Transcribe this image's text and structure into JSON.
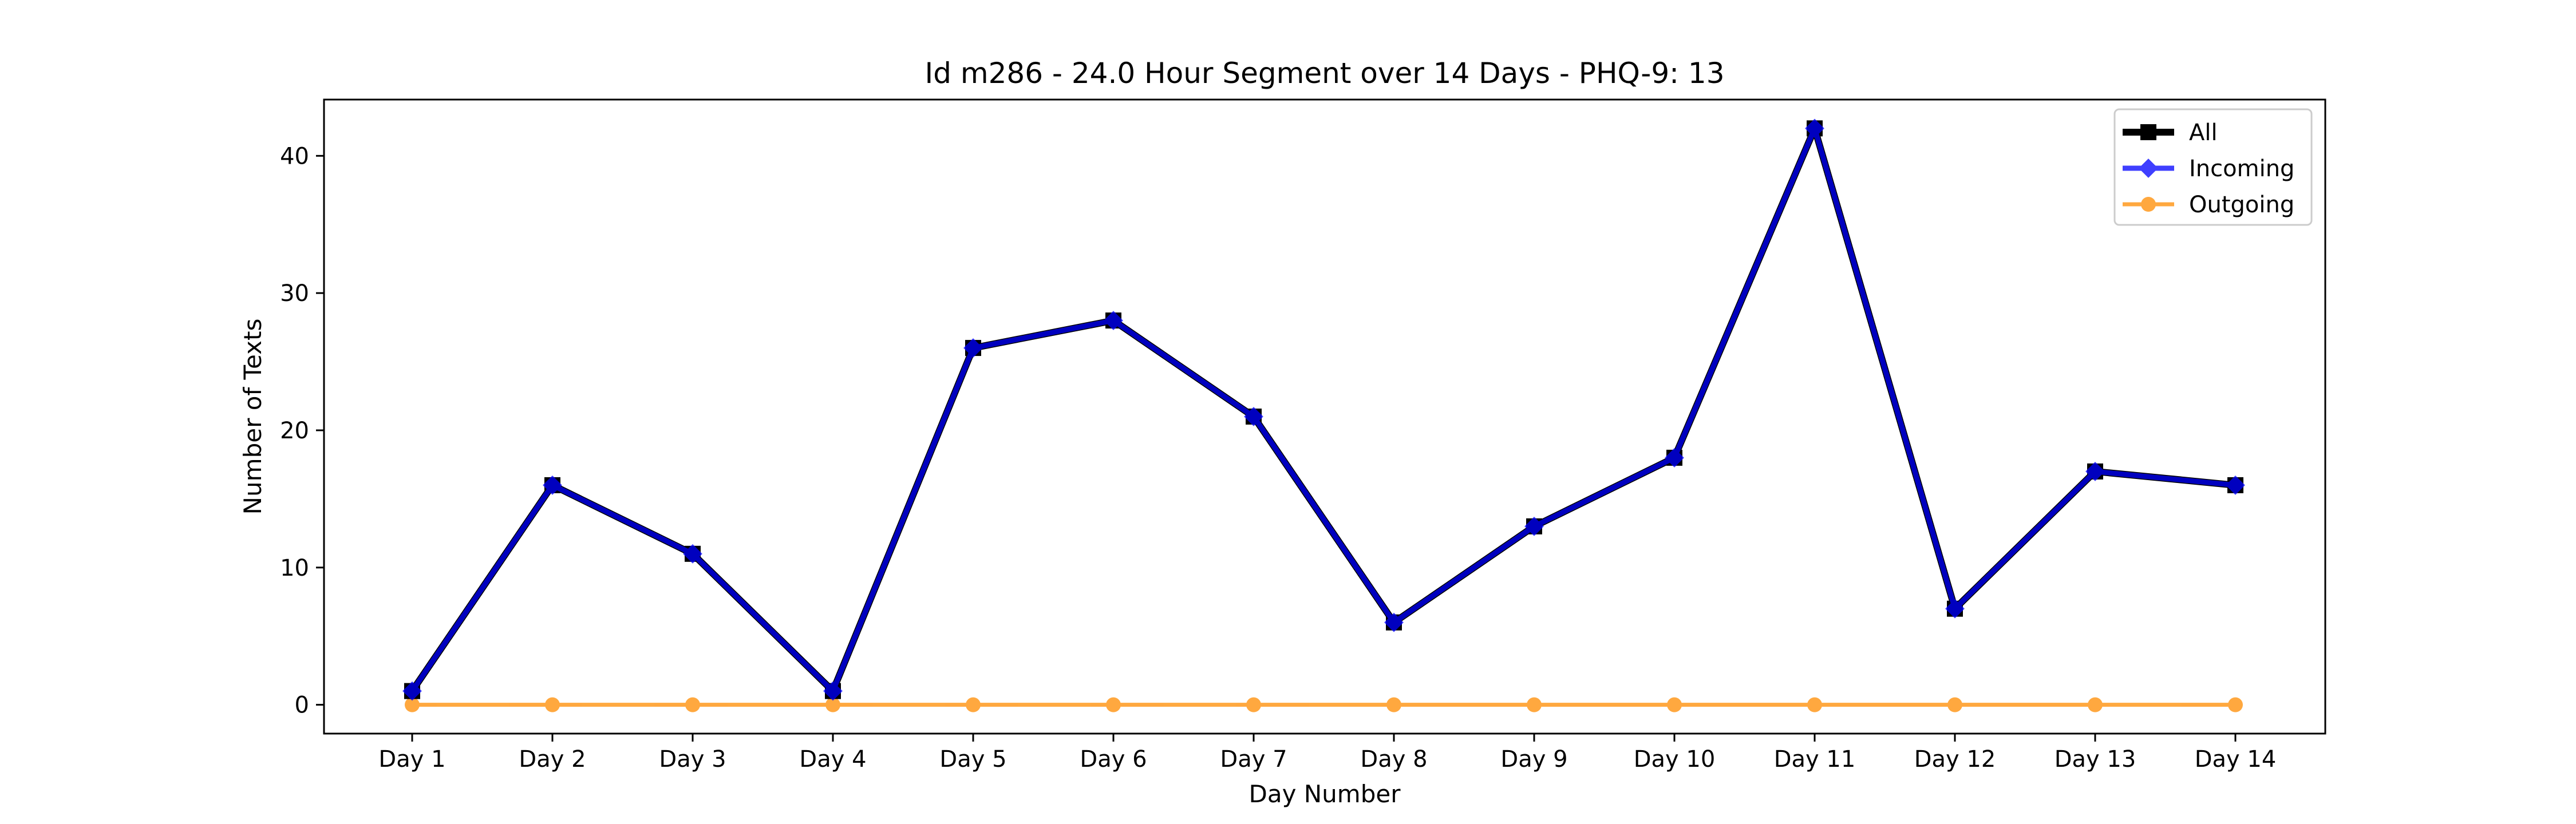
{
  "chart_data": {
    "type": "line",
    "title": "Id m286 - 24.0 Hour Segment over 14 Days - PHQ-9: 13",
    "xlabel": "Day Number",
    "ylabel": "Number of Texts",
    "categories": [
      "Day 1",
      "Day 2",
      "Day 3",
      "Day 4",
      "Day 5",
      "Day 6",
      "Day 7",
      "Day 8",
      "Day 9",
      "Day 10",
      "Day 11",
      "Day 12",
      "Day 13",
      "Day 14"
    ],
    "yticks": [
      0,
      10,
      20,
      30,
      40
    ],
    "ylim": [
      -2.1,
      44.1
    ],
    "grid": false,
    "legend_position": "top-right",
    "series": [
      {
        "name": "All",
        "color": "#000000",
        "marker": "square",
        "values": [
          1,
          16,
          11,
          1,
          26,
          28,
          21,
          6,
          13,
          18,
          42,
          7,
          17,
          16
        ]
      },
      {
        "name": "Incoming",
        "color": "#0000ff",
        "marker": "diamond",
        "values": [
          1,
          16,
          11,
          1,
          26,
          28,
          21,
          6,
          13,
          18,
          42,
          7,
          17,
          16
        ]
      },
      {
        "name": "Outgoing",
        "color": "#ff8c00",
        "marker": "circle",
        "values": [
          0,
          0,
          0,
          0,
          0,
          0,
          0,
          0,
          0,
          0,
          0,
          0,
          0,
          0
        ]
      }
    ]
  }
}
